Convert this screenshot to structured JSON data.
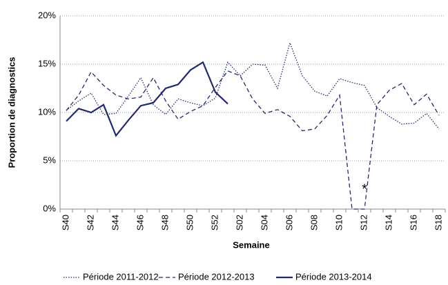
{
  "chart_data": {
    "type": "line",
    "y_label": "Proportion de diagnostics",
    "x_label": "Semaine",
    "categories": [
      "S40",
      null,
      "S42",
      null,
      "S44",
      null,
      "S46",
      null,
      "S48",
      null,
      "S50",
      null,
      "S52",
      null,
      "S02",
      null,
      "S04",
      null,
      "S06",
      null,
      "S08",
      null,
      "S10",
      null,
      "S12",
      null,
      "S14",
      null,
      "S16",
      null,
      "S18"
    ],
    "series": [
      {
        "name": "Période 2011-2012",
        "color": "#1f2a6b",
        "linestyle": "dotted",
        "values": [
          10.2,
          11.2,
          12.0,
          9.8,
          9.9,
          11.7,
          13.6,
          10.8,
          9.8,
          11.4,
          11.0,
          10.7,
          11.5,
          15.2,
          13.8,
          15.0,
          14.9,
          12.5,
          17.2,
          13.8,
          12.2,
          11.7,
          13.5,
          13.1,
          12.8,
          10.5,
          9.6,
          8.8,
          8.9,
          9.9,
          8.3
        ]
      },
      {
        "name": "Période 2012-2013",
        "color": "#1f2a6b",
        "linestyle": "dashed",
        "values": [
          10.2,
          11.8,
          14.2,
          12.8,
          11.8,
          11.4,
          11.6,
          13.6,
          11.2,
          9.3,
          10.1,
          10.7,
          12.6,
          14.3,
          13.8,
          11.4,
          9.9,
          10.3,
          9.6,
          8.1,
          8.3,
          9.7,
          11.8,
          0,
          0,
          10.8,
          12.3,
          13.0,
          10.8,
          11.9,
          9.7
        ]
      },
      {
        "name": "Période 2013-2014",
        "color": "#1f2a6b",
        "linestyle": "solid",
        "values": [
          9.1,
          10.4,
          10.0,
          10.8,
          7.6,
          9.2,
          10.7,
          11.0,
          12.5,
          12.9,
          14.4,
          15.2,
          12.1,
          10.9,
          null,
          null,
          null,
          null,
          null,
          null,
          null,
          null,
          null,
          null,
          null,
          null,
          null,
          null,
          null,
          null,
          null
        ]
      }
    ],
    "ylim": [
      0,
      20
    ],
    "yticks": [
      {
        "value": 0,
        "label": "0%"
      },
      {
        "value": 5,
        "label": "5%"
      },
      {
        "value": 10,
        "label": "10%"
      },
      {
        "value": 15,
        "label": "15%"
      },
      {
        "value": 20,
        "label": "20%"
      }
    ],
    "grid": true,
    "annotations": [
      {
        "text": "*",
        "x": "S12",
        "y": 2
      }
    ]
  }
}
